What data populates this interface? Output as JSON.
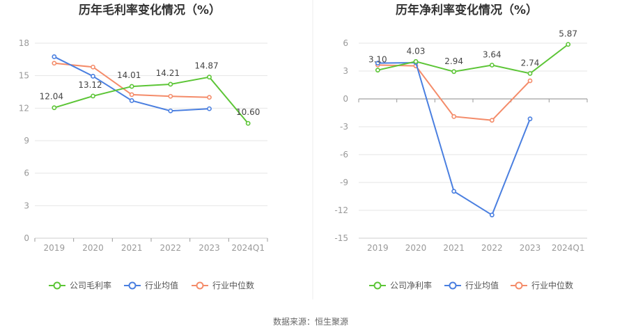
{
  "source": "数据来源：恒生聚源",
  "colors": {
    "company": "#5cc536",
    "avg": "#4a7fe0",
    "median": "#f48c6a"
  },
  "chart_data": [
    {
      "type": "line",
      "title": "历年毛利率变化情况（%）",
      "categories": [
        "2019",
        "2020",
        "2021",
        "2022",
        "2023",
        "2024Q1"
      ],
      "ylim": [
        0,
        18
      ],
      "yticks": [
        0,
        3,
        6,
        9,
        12,
        15,
        18
      ],
      "grid": true,
      "legend": "bottom",
      "series": [
        {
          "name": "公司毛利率",
          "key": "company",
          "values": [
            12.04,
            13.12,
            14.01,
            14.21,
            14.87,
            10.6
          ],
          "labels": [
            "12.04",
            "13.12",
            "14.01",
            "14.21",
            "14.87",
            "10.60"
          ]
        },
        {
          "name": "行业均值",
          "key": "avg",
          "values": [
            16.75,
            14.95,
            12.7,
            11.75,
            11.95,
            null
          ]
        },
        {
          "name": "行业中位数",
          "key": "median",
          "values": [
            16.15,
            15.8,
            13.25,
            13.1,
            13.0,
            null
          ]
        }
      ]
    },
    {
      "type": "line",
      "title": "历年净利率变化情况（%）",
      "categories": [
        "2019",
        "2020",
        "2021",
        "2022",
        "2023",
        "2024Q1"
      ],
      "ylim": [
        -15,
        6
      ],
      "yticks": [
        -15,
        -12,
        -9,
        -6,
        -3,
        0,
        3,
        6
      ],
      "grid": true,
      "legend": "bottom",
      "series": [
        {
          "name": "公司净利率",
          "key": "company",
          "values": [
            3.1,
            4.03,
            2.94,
            3.64,
            2.74,
            5.87
          ],
          "labels": [
            "3.10",
            "4.03",
            "2.94",
            "3.64",
            "2.74",
            "5.87"
          ]
        },
        {
          "name": "行业均值",
          "key": "avg",
          "values": [
            3.85,
            3.9,
            -9.95,
            -12.5,
            -2.15,
            null
          ]
        },
        {
          "name": "行业中位数",
          "key": "median",
          "values": [
            3.65,
            3.55,
            -1.9,
            -2.3,
            1.95,
            null
          ]
        }
      ]
    }
  ]
}
